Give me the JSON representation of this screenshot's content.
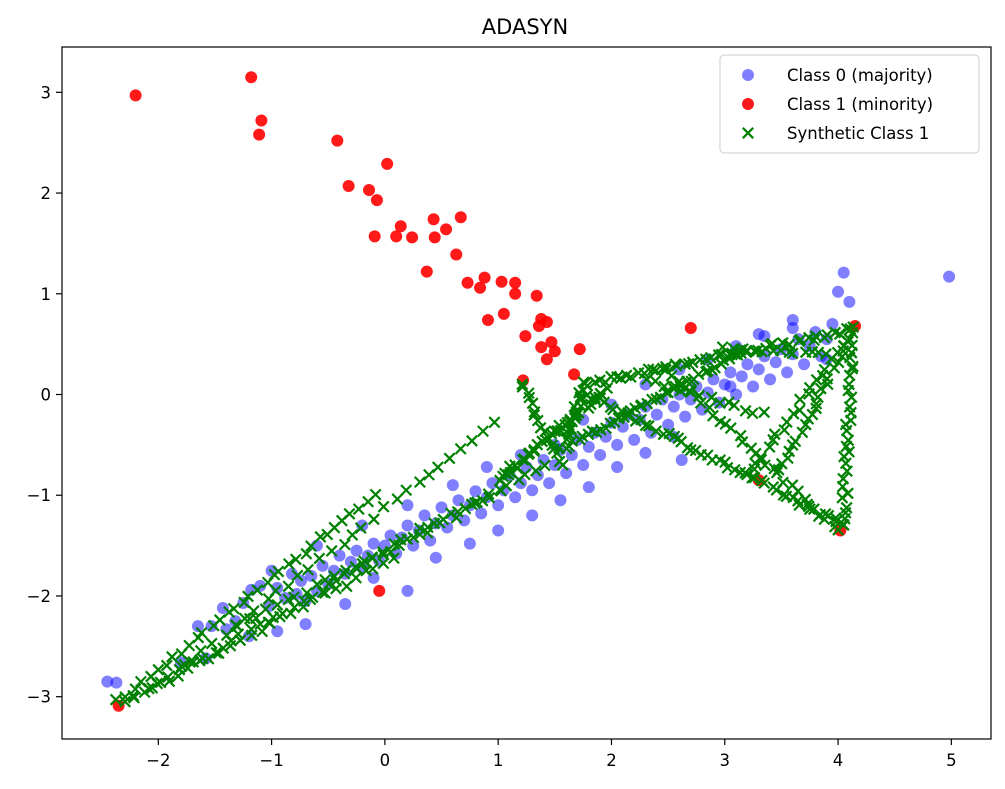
{
  "chart_data": {
    "type": "scatter",
    "title": "ADASYN",
    "xlabel": "",
    "ylabel": "",
    "xlim": [
      -2.85,
      5.35
    ],
    "ylim": [
      -3.42,
      3.45
    ],
    "x_ticks": [
      -2,
      -1,
      0,
      1,
      2,
      3,
      4,
      5
    ],
    "y_ticks": [
      -3,
      -2,
      -1,
      0,
      1,
      2,
      3
    ],
    "grid": false,
    "legend_position": "top-right",
    "series": [
      {
        "name": "Class 0 (majority)",
        "marker": "circle",
        "color": "#0000ff",
        "alpha": 0.5,
        "points": [
          [
            -2.45,
            -2.85
          ],
          [
            -2.37,
            -2.86
          ],
          [
            -1.8,
            -2.66
          ],
          [
            -1.58,
            -2.62
          ],
          [
            -1.53,
            -2.3
          ],
          [
            -1.43,
            -2.12
          ],
          [
            -1.4,
            -2.33
          ],
          [
            -1.32,
            -2.25
          ],
          [
            -1.25,
            -2.07
          ],
          [
            -1.18,
            -1.94
          ],
          [
            -1.1,
            -1.9
          ],
          [
            -1.02,
            -2.1
          ],
          [
            -0.95,
            -1.92
          ],
          [
            -0.88,
            -2.02
          ],
          [
            -0.82,
            -1.78
          ],
          [
            -0.78,
            -1.98
          ],
          [
            -0.74,
            -1.85
          ],
          [
            -0.7,
            -2.05
          ],
          [
            -0.65,
            -1.8
          ],
          [
            -0.6,
            -1.95
          ],
          [
            -0.55,
            -1.7
          ],
          [
            -0.5,
            -1.88
          ],
          [
            -0.45,
            -1.75
          ],
          [
            -0.4,
            -1.6
          ],
          [
            -0.35,
            -1.78
          ],
          [
            -0.3,
            -1.66
          ],
          [
            -0.25,
            -1.55
          ],
          [
            -0.2,
            -1.72
          ],
          [
            -0.15,
            -1.6
          ],
          [
            -0.1,
            -1.48
          ],
          [
            -0.05,
            -1.65
          ],
          [
            0.0,
            -1.5
          ],
          [
            0.05,
            -1.4
          ],
          [
            0.1,
            -1.58
          ],
          [
            0.15,
            -1.42
          ],
          [
            0.2,
            -1.3
          ],
          [
            0.25,
            -1.5
          ],
          [
            0.3,
            -1.35
          ],
          [
            0.35,
            -1.2
          ],
          [
            0.4,
            -1.45
          ],
          [
            0.45,
            -1.28
          ],
          [
            0.5,
            -1.12
          ],
          [
            0.55,
            -1.32
          ],
          [
            0.6,
            -1.2
          ],
          [
            0.65,
            -1.05
          ],
          [
            0.7,
            -1.25
          ],
          [
            0.75,
            -1.1
          ],
          [
            0.8,
            -0.96
          ],
          [
            0.85,
            -1.18
          ],
          [
            0.9,
            -1.02
          ],
          [
            0.95,
            -0.88
          ],
          [
            1.0,
            -1.1
          ],
          [
            1.05,
            -0.95
          ],
          [
            1.1,
            -0.8
          ],
          [
            1.15,
            -1.02
          ],
          [
            1.2,
            -0.88
          ],
          [
            1.25,
            -0.72
          ],
          [
            1.3,
            -0.95
          ],
          [
            1.35,
            -0.8
          ],
          [
            1.4,
            -0.65
          ],
          [
            1.45,
            -0.88
          ],
          [
            1.5,
            -0.7
          ],
          [
            1.55,
            -0.55
          ],
          [
            1.6,
            -0.78
          ],
          [
            1.65,
            -0.6
          ],
          [
            1.7,
            -0.45
          ],
          [
            1.75,
            -0.7
          ],
          [
            1.8,
            -0.52
          ],
          [
            1.85,
            -0.38
          ],
          [
            1.9,
            -0.6
          ],
          [
            1.95,
            -0.42
          ],
          [
            2.0,
            -0.28
          ],
          [
            2.05,
            -0.5
          ],
          [
            2.1,
            -0.32
          ],
          [
            2.15,
            -0.2
          ],
          [
            2.2,
            -0.45
          ],
          [
            2.25,
            -0.25
          ],
          [
            2.3,
            -0.12
          ],
          [
            2.35,
            -0.38
          ],
          [
            2.4,
            -0.2
          ],
          [
            2.45,
            -0.05
          ],
          [
            2.5,
            -0.3
          ],
          [
            2.55,
            -0.12
          ],
          [
            2.6,
            0.0
          ],
          [
            2.65,
            -0.22
          ],
          [
            2.7,
            -0.05
          ],
          [
            2.75,
            0.08
          ],
          [
            2.8,
            -0.15
          ],
          [
            2.85,
            0.02
          ],
          [
            2.9,
            0.15
          ],
          [
            2.95,
            -0.08
          ],
          [
            3.0,
            0.1
          ],
          [
            3.05,
            0.22
          ],
          [
            3.1,
            0.0
          ],
          [
            3.15,
            0.18
          ],
          [
            3.2,
            0.3
          ],
          [
            3.25,
            0.08
          ],
          [
            3.3,
            0.25
          ],
          [
            3.35,
            0.38
          ],
          [
            3.4,
            0.15
          ],
          [
            3.45,
            0.32
          ],
          [
            3.5,
            0.45
          ],
          [
            3.55,
            0.22
          ],
          [
            3.6,
            0.4
          ],
          [
            3.65,
            0.55
          ],
          [
            3.7,
            0.3
          ],
          [
            3.75,
            0.48
          ],
          [
            3.8,
            0.62
          ],
          [
            3.85,
            0.38
          ],
          [
            3.9,
            0.55
          ],
          [
            3.95,
            0.7
          ],
          [
            4.0,
            1.02
          ],
          [
            4.05,
            1.21
          ],
          [
            4.1,
            0.92
          ],
          [
            4.98,
            1.17
          ],
          [
            3.6,
            0.74
          ],
          [
            3.3,
            0.6
          ],
          [
            3.9,
            0.35
          ],
          [
            2.62,
            -0.65
          ],
          [
            3.05,
            0.08
          ],
          [
            -1.65,
            -2.3
          ],
          [
            -1.2,
            -2.4
          ],
          [
            -0.95,
            -2.35
          ],
          [
            -0.7,
            -2.28
          ],
          [
            -0.35,
            -2.08
          ],
          [
            -0.1,
            -1.82
          ],
          [
            0.2,
            -1.95
          ],
          [
            0.45,
            -1.62
          ],
          [
            0.75,
            -1.48
          ],
          [
            1.0,
            -1.35
          ],
          [
            1.3,
            -1.2
          ],
          [
            1.55,
            -1.05
          ],
          [
            1.8,
            -0.92
          ],
          [
            2.05,
            -0.72
          ],
          [
            2.3,
            -0.58
          ],
          [
            2.55,
            -0.42
          ],
          [
            -1.0,
            -1.75
          ],
          [
            -0.6,
            -1.5
          ],
          [
            -0.2,
            -1.3
          ],
          [
            0.2,
            -1.1
          ],
          [
            0.6,
            -0.9
          ],
          [
            0.9,
            -0.72
          ],
          [
            1.2,
            -0.6
          ],
          [
            1.5,
            -0.5
          ],
          [
            1.75,
            -0.25
          ],
          [
            2.0,
            -0.1
          ],
          [
            2.3,
            0.1
          ],
          [
            2.6,
            0.25
          ],
          [
            2.85,
            0.35
          ],
          [
            3.1,
            0.48
          ],
          [
            3.35,
            0.58
          ],
          [
            3.6,
            0.66
          ]
        ]
      },
      {
        "name": "Class 1 (minority)",
        "marker": "circle",
        "color": "#ff0000",
        "alpha": 0.9,
        "points": [
          [
            -2.2,
            2.97
          ],
          [
            -1.18,
            3.15
          ],
          [
            -1.09,
            2.72
          ],
          [
            -1.11,
            2.58
          ],
          [
            -0.42,
            2.52
          ],
          [
            0.02,
            2.29
          ],
          [
            -0.32,
            2.07
          ],
          [
            -0.14,
            2.03
          ],
          [
            -0.07,
            1.93
          ],
          [
            -0.09,
            1.57
          ],
          [
            0.1,
            1.57
          ],
          [
            0.14,
            1.67
          ],
          [
            0.24,
            1.56
          ],
          [
            0.43,
            1.74
          ],
          [
            0.44,
            1.56
          ],
          [
            0.54,
            1.64
          ],
          [
            0.67,
            1.76
          ],
          [
            0.63,
            1.39
          ],
          [
            0.37,
            1.22
          ],
          [
            0.73,
            1.11
          ],
          [
            0.84,
            1.06
          ],
          [
            0.88,
            1.16
          ],
          [
            1.03,
            1.12
          ],
          [
            1.15,
            1.11
          ],
          [
            1.15,
            1.0
          ],
          [
            1.05,
            0.8
          ],
          [
            0.91,
            0.74
          ],
          [
            1.34,
            0.98
          ],
          [
            1.38,
            0.75
          ],
          [
            1.36,
            0.68
          ],
          [
            1.43,
            0.72
          ],
          [
            1.24,
            0.58
          ],
          [
            1.38,
            0.47
          ],
          [
            1.47,
            0.52
          ],
          [
            1.5,
            0.43
          ],
          [
            1.43,
            0.35
          ],
          [
            1.72,
            0.45
          ],
          [
            1.67,
            0.2
          ],
          [
            1.22,
            0.14
          ],
          [
            4.15,
            0.68
          ],
          [
            -2.35,
            -3.09
          ],
          [
            -0.05,
            -1.95
          ],
          [
            3.3,
            -0.85
          ],
          [
            4.02,
            -1.35
          ],
          [
            2.7,
            0.66
          ]
        ]
      },
      {
        "name": "Synthetic Class 1",
        "marker": "x",
        "color": "#008000",
        "alpha": 1,
        "segments": [
          {
            "from": [
              -2.35,
              -3.05
            ],
            "to": [
              -0.1,
              -1.0
            ],
            "n": 34
          },
          {
            "from": [
              -2.3,
              -3.05
            ],
            "to": [
              1.4,
              -0.7
            ],
            "n": 48
          },
          {
            "from": [
              -2.2,
              -3.0
            ],
            "to": [
              0.1,
              -1.6
            ],
            "n": 26
          },
          {
            "from": [
              -1.8,
              -2.72
            ],
            "to": [
              0.95,
              -0.3
            ],
            "n": 30
          },
          {
            "from": [
              -1.3,
              -2.3
            ],
            "to": [
              1.0,
              -0.95
            ],
            "n": 28
          },
          {
            "from": [
              1.2,
              0.12
            ],
            "to": [
              1.55,
              -0.7
            ],
            "n": 16
          },
          {
            "from": [
              1.0,
              -0.85
            ],
            "to": [
              1.95,
              0.05
            ],
            "n": 40
          },
          {
            "from": [
              1.55,
              -0.55
            ],
            "to": [
              3.2,
              0.45
            ],
            "n": 44
          },
          {
            "from": [
              1.6,
              -0.45
            ],
            "to": [
              1.75,
              0.1
            ],
            "n": 14
          },
          {
            "from": [
              1.75,
              0.1
            ],
            "to": [
              4.15,
              0.65
            ],
            "n": 52
          },
          {
            "from": [
              1.8,
              0.0
            ],
            "to": [
              4.05,
              -1.3
            ],
            "n": 50
          },
          {
            "from": [
              2.5,
              0.25
            ],
            "to": [
              4.0,
              -1.35
            ],
            "n": 30
          },
          {
            "from": [
              3.0,
              0.45
            ],
            "to": [
              3.9,
              0.4
            ],
            "n": 14
          },
          {
            "from": [
              3.5,
              -0.75
            ],
            "to": [
              4.1,
              0.55
            ],
            "n": 22
          },
          {
            "from": [
              4.05,
              -1.3
            ],
            "to": [
              4.12,
              0.5
            ],
            "n": 28
          },
          {
            "from": [
              3.2,
              -0.8
            ],
            "to": [
              4.12,
              0.6
            ],
            "n": 22
          },
          {
            "from": [
              2.3,
              0.15
            ],
            "to": [
              3.35,
              -0.2
            ],
            "n": 14
          }
        ]
      }
    ]
  }
}
